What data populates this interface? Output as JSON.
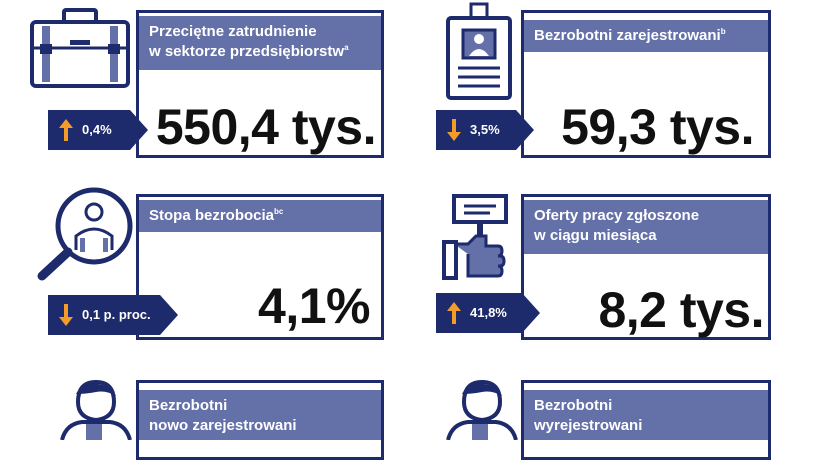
{
  "colors": {
    "navy": "#1d2a6b",
    "header_blue": "#6470a8",
    "arrow_orange": "#f39c2a"
  },
  "cards": [
    {
      "title_line1": "Przeciętne zatrudnienie",
      "title_line2": "w sektorze przedsiębiorstw",
      "title_sup": "a",
      "value": "550,4 tys.",
      "change": "0,4%",
      "direction": "up",
      "icon": "briefcase-icon"
    },
    {
      "title_line1": "Bezrobotni zarejestrowani",
      "title_sup": "b",
      "value": "59,3 tys.",
      "change": "3,5%",
      "direction": "down",
      "icon": "id-badge-icon"
    },
    {
      "title_line1": "Stopa bezrobocia",
      "title_sup": "bc",
      "value": "4,1%",
      "change": "0,1 p. proc.",
      "direction": "down",
      "icon": "magnifier-person-icon"
    },
    {
      "title_line1": "Oferty pracy zgłoszone",
      "title_line2": "w ciągu miesiąca",
      "value": "8,2 tys.",
      "change": "41,8%",
      "direction": "up",
      "icon": "hand-sign-icon"
    },
    {
      "title_line1": "Bezrobotni",
      "title_line2": "nowo zarejestrowani",
      "icon": "person-icon"
    },
    {
      "title_line1": "Bezrobotni",
      "title_line2": "wyrejestrowani",
      "icon": "person-icon"
    }
  ]
}
